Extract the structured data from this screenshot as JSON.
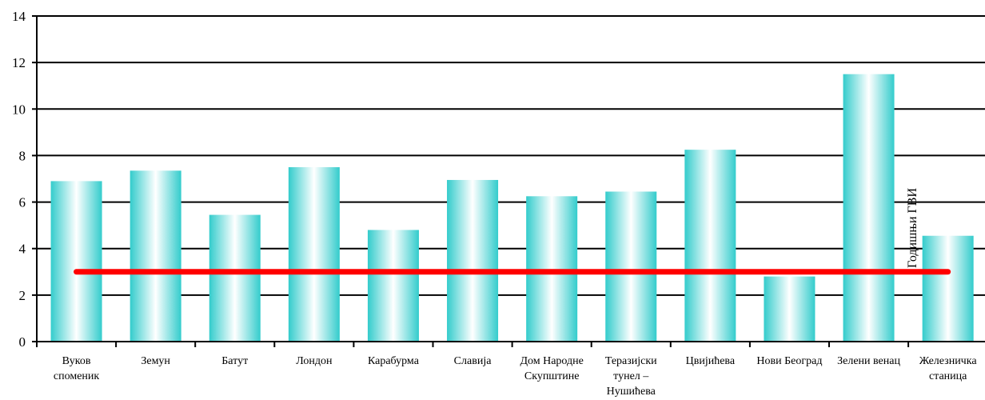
{
  "chart_data": {
    "type": "bar",
    "title": "",
    "xlabel": "",
    "ylabel": "",
    "ylim": [
      0,
      14
    ],
    "yticks": [
      0,
      2,
      4,
      6,
      8,
      10,
      12,
      14
    ],
    "grid": true,
    "categories": [
      [
        "Вуков",
        "споменик"
      ],
      [
        "Земун"
      ],
      [
        "Батут"
      ],
      [
        "Лондон"
      ],
      [
        "Карабурма"
      ],
      [
        "Славија"
      ],
      [
        "Дом Народне",
        "Скупштине"
      ],
      [
        "Теразијски",
        "тунел –",
        "Нушићева"
      ],
      [
        "Цвијићева"
      ],
      [
        "Нови Београд"
      ],
      [
        "Зелени венац"
      ],
      [
        "Железничка",
        "станица"
      ]
    ],
    "values": [
      6.9,
      7.35,
      5.45,
      7.5,
      4.8,
      6.95,
      6.25,
      6.45,
      8.25,
      2.8,
      11.5,
      4.55
    ],
    "reference_line": {
      "label": "Годишњи ГВИ",
      "value": 3,
      "color": "#ff0000"
    },
    "colors": {
      "bar_edge": "#33cccc",
      "bar_center": "#ffffff",
      "axis": "#000000"
    }
  }
}
